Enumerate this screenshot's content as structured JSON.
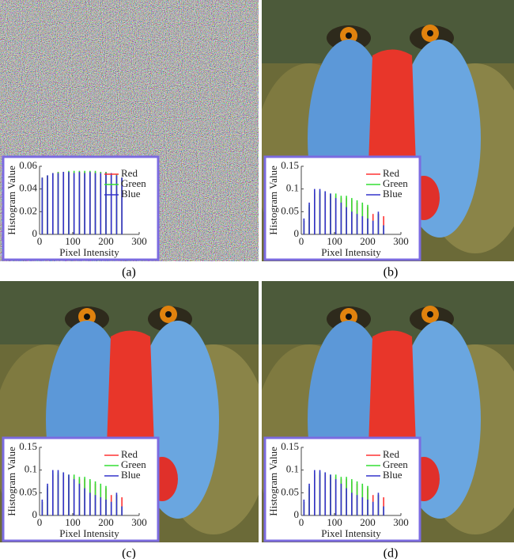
{
  "chart_data": [
    {
      "type": "bar",
      "caption": "(a)",
      "xlabel": "Pixel Intensity",
      "ylabel": "Histogram Value",
      "x": [
        8,
        24,
        40,
        56,
        72,
        88,
        104,
        120,
        136,
        152,
        168,
        184,
        200,
        216,
        232,
        248
      ],
      "xlim": [
        0,
        300
      ],
      "xticks": [
        0,
        100,
        200,
        300
      ],
      "ylim": [
        0,
        0.06
      ],
      "yticks": [
        0,
        0.02,
        0.04,
        0.06
      ],
      "series": [
        {
          "name": "Red",
          "color": "#ff3333",
          "values": [
            0.05,
            0.052,
            0.054,
            0.055,
            0.055,
            0.055,
            0.055,
            0.055,
            0.055,
            0.055,
            0.055,
            0.055,
            0.055,
            0.054,
            0.053,
            0.05
          ]
        },
        {
          "name": "Green",
          "color": "#33dd33",
          "values": [
            0.05,
            0.052,
            0.054,
            0.055,
            0.055,
            0.056,
            0.056,
            0.056,
            0.056,
            0.056,
            0.056,
            0.055,
            0.055,
            0.054,
            0.053,
            0.05
          ]
        },
        {
          "name": "Blue",
          "color": "#3333cc",
          "values": [
            0.05,
            0.052,
            0.054,
            0.054,
            0.055,
            0.055,
            0.054,
            0.055,
            0.054,
            0.055,
            0.054,
            0.054,
            0.054,
            0.054,
            0.052,
            0.05
          ]
        }
      ]
    },
    {
      "type": "bar",
      "caption": "(b)",
      "xlabel": "Pixel Intensity",
      "ylabel": "Histogram Value",
      "x": [
        8,
        24,
        40,
        56,
        72,
        88,
        104,
        120,
        136,
        152,
        168,
        184,
        200,
        216,
        232,
        248
      ],
      "xlim": [
        0,
        300
      ],
      "xticks": [
        0,
        100,
        200,
        300
      ],
      "ylim": [
        0,
        0.15
      ],
      "yticks": [
        0,
        0.05,
        0.1,
        0.15
      ],
      "series": [
        {
          "name": "Red",
          "color": "#ff3333",
          "values": [
            0.03,
            0.06,
            0.09,
            0.09,
            0.09,
            0.085,
            0.085,
            0.08,
            0.08,
            0.075,
            0.07,
            0.065,
            0.06,
            0.045,
            0.045,
            0.04
          ]
        },
        {
          "name": "Green",
          "color": "#33dd33",
          "values": [
            0.03,
            0.065,
            0.095,
            0.095,
            0.095,
            0.09,
            0.09,
            0.085,
            0.085,
            0.08,
            0.075,
            0.07,
            0.065,
            0.03,
            0.045,
            0.02
          ]
        },
        {
          "name": "Blue",
          "color": "#3333cc",
          "values": [
            0.035,
            0.07,
            0.1,
            0.1,
            0.095,
            0.09,
            0.08,
            0.07,
            0.06,
            0.05,
            0.045,
            0.04,
            0.035,
            0.03,
            0.05,
            0.02
          ]
        }
      ]
    },
    {
      "type": "bar",
      "caption": "(c)",
      "xlabel": "Pixel Intensity",
      "ylabel": "Histogram Value",
      "x": [
        8,
        24,
        40,
        56,
        72,
        88,
        104,
        120,
        136,
        152,
        168,
        184,
        200,
        216,
        232,
        248
      ],
      "xlim": [
        0,
        300
      ],
      "xticks": [
        0,
        100,
        200,
        300
      ],
      "ylim": [
        0,
        0.15
      ],
      "yticks": [
        0,
        0.05,
        0.1,
        0.15
      ],
      "series": [
        {
          "name": "Red",
          "color": "#ff3333",
          "values": [
            0.03,
            0.06,
            0.09,
            0.09,
            0.09,
            0.085,
            0.085,
            0.08,
            0.08,
            0.075,
            0.07,
            0.065,
            0.06,
            0.045,
            0.045,
            0.04
          ]
        },
        {
          "name": "Green",
          "color": "#33dd33",
          "values": [
            0.03,
            0.065,
            0.095,
            0.095,
            0.095,
            0.09,
            0.09,
            0.085,
            0.085,
            0.08,
            0.075,
            0.07,
            0.065,
            0.03,
            0.045,
            0.02
          ]
        },
        {
          "name": "Blue",
          "color": "#3333cc",
          "values": [
            0.035,
            0.07,
            0.1,
            0.1,
            0.095,
            0.09,
            0.08,
            0.07,
            0.06,
            0.05,
            0.045,
            0.04,
            0.035,
            0.03,
            0.05,
            0.02
          ]
        }
      ]
    },
    {
      "type": "bar",
      "caption": "(d)",
      "xlabel": "Pixel Intensity",
      "ylabel": "Histogram Value",
      "x": [
        8,
        24,
        40,
        56,
        72,
        88,
        104,
        120,
        136,
        152,
        168,
        184,
        200,
        216,
        232,
        248
      ],
      "xlim": [
        0,
        300
      ],
      "xticks": [
        0,
        100,
        200,
        300
      ],
      "ylim": [
        0,
        0.15
      ],
      "yticks": [
        0,
        0.05,
        0.1,
        0.15
      ],
      "series": [
        {
          "name": "Red",
          "color": "#ff3333",
          "values": [
            0.03,
            0.06,
            0.09,
            0.09,
            0.09,
            0.085,
            0.085,
            0.08,
            0.08,
            0.075,
            0.07,
            0.065,
            0.06,
            0.045,
            0.045,
            0.04
          ]
        },
        {
          "name": "Green",
          "color": "#33dd33",
          "values": [
            0.03,
            0.065,
            0.095,
            0.095,
            0.095,
            0.09,
            0.09,
            0.085,
            0.085,
            0.08,
            0.075,
            0.07,
            0.065,
            0.03,
            0.045,
            0.02
          ]
        },
        {
          "name": "Blue",
          "color": "#3333cc",
          "values": [
            0.035,
            0.07,
            0.1,
            0.1,
            0.095,
            0.09,
            0.08,
            0.07,
            0.06,
            0.05,
            0.045,
            0.04,
            0.035,
            0.03,
            0.05,
            0.02
          ]
        }
      ]
    }
  ]
}
